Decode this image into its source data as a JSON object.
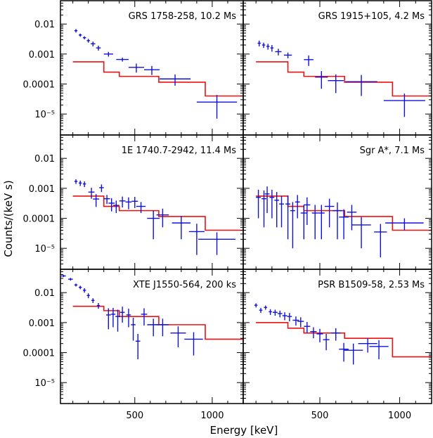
{
  "figure": {
    "xlabel": "Energy [keV]",
    "ylabel": "Counts/(keV s)",
    "x_ticks": [
      "500",
      "1000"
    ],
    "y_ticks": [
      "0.01",
      "0.001",
      "0.0001",
      "10⁻⁵"
    ]
  },
  "colors": {
    "data": "#1010dd",
    "model": "#ee1111",
    "frame": "#000000"
  },
  "chart_data": [
    {
      "type": "scatter",
      "title": "GRS 1758-258, 10.2 Ms",
      "xlim": [
        20,
        1200
      ],
      "ylim": [
        2e-06,
        0.06
      ],
      "yscale": "log",
      "data": [
        [
          120,
          0.006,
          10,
          0.0008
        ],
        [
          148,
          0.0043,
          10,
          0.0005
        ],
        [
          175,
          0.0035,
          10,
          0.0004
        ],
        [
          200,
          0.0028,
          10,
          0.0004
        ],
        [
          230,
          0.0022,
          15,
          0.0004
        ],
        [
          265,
          0.0016,
          15,
          0.0003
        ],
        [
          330,
          0.001,
          30,
          0.00018
        ],
        [
          420,
          0.00066,
          40,
          0.0001
        ],
        [
          510,
          0.00036,
          50,
          0.00012
        ],
        [
          610,
          0.0003,
          50,
          0.0001
        ],
        [
          760,
          0.000148,
          100,
          6e-05
        ],
        [
          1030,
          2.5e-05,
          130,
          1.8e-05
        ]
      ],
      "model": [
        [
          100,
          0.00055
        ],
        [
          300,
          0.00025
        ],
        [
          400,
          0.00018
        ],
        [
          655,
          0.000115
        ],
        [
          955,
          4e-05
        ],
        [
          1200,
          4e-05
        ]
      ]
    },
    {
      "type": "scatter",
      "title": "GRS 1915+105, 4.2 Ms",
      "xlim": [
        20,
        1200
      ],
      "ylim": [
        2e-06,
        0.06
      ],
      "yscale": "log",
      "data": [
        [
          120,
          0.0023,
          10,
          0.0005
        ],
        [
          148,
          0.002,
          10,
          0.0004
        ],
        [
          175,
          0.0018,
          10,
          0.0004
        ],
        [
          200,
          0.0016,
          10,
          0.0004
        ],
        [
          240,
          0.0012,
          20,
          0.0003
        ],
        [
          300,
          0.00092,
          25,
          0.0002
        ],
        [
          430,
          0.00065,
          30,
          0.00025
        ],
        [
          510,
          0.00017,
          40,
          0.0001
        ],
        [
          600,
          0.00013,
          50,
          8e-05
        ],
        [
          760,
          0.00012,
          100,
          8e-05
        ],
        [
          1030,
          2.8e-05,
          130,
          2e-05
        ]
      ],
      "model": [
        [
          100,
          0.00055
        ],
        [
          300,
          0.00025
        ],
        [
          400,
          0.00018
        ],
        [
          655,
          0.000115
        ],
        [
          955,
          4e-05
        ],
        [
          1200,
          4e-05
        ]
      ]
    },
    {
      "type": "scatter",
      "title": "1E 1740.7-2942, 11.4 Ms",
      "xlim": [
        20,
        1200
      ],
      "ylim": [
        2e-06,
        0.06
      ],
      "yscale": "log",
      "data": [
        [
          120,
          0.0017,
          10,
          0.0003
        ],
        [
          148,
          0.0015,
          10,
          0.0003
        ],
        [
          175,
          0.0014,
          10,
          0.0003
        ],
        [
          220,
          0.00075,
          20,
          0.0003
        ],
        [
          250,
          0.00044,
          20,
          0.0002
        ],
        [
          285,
          0.00105,
          15,
          0.0003
        ],
        [
          320,
          0.00045,
          20,
          0.00015
        ],
        [
          350,
          0.00032,
          20,
          0.00015
        ],
        [
          380,
          0.00027,
          20,
          0.00012
        ],
        [
          420,
          0.00038,
          20,
          0.00015
        ],
        [
          460,
          0.00035,
          20,
          0.00015
        ],
        [
          500,
          0.00037,
          20,
          0.00015
        ],
        [
          540,
          0.00025,
          30,
          0.0001
        ],
        [
          620,
          0.0001,
          40,
          8e-05
        ],
        [
          680,
          0.00013,
          40,
          8e-05
        ],
        [
          800,
          7e-05,
          60,
          5e-05
        ],
        [
          900,
          3.6e-05,
          50,
          3e-05
        ],
        [
          1030,
          2e-05,
          120,
          1.4e-05
        ]
      ],
      "model": [
        [
          100,
          0.00055
        ],
        [
          300,
          0.00025
        ],
        [
          400,
          0.00018
        ],
        [
          655,
          0.000115
        ],
        [
          955,
          4e-05
        ],
        [
          1200,
          4e-05
        ]
      ]
    },
    {
      "type": "scatter",
      "title": "Sgr A*, 7.1 Ms",
      "xlim": [
        20,
        1200
      ],
      "ylim": [
        2e-06,
        0.06
      ],
      "yscale": "log",
      "data": [
        [
          115,
          0.0005,
          15,
          0.0004
        ],
        [
          150,
          0.00045,
          15,
          0.0004
        ],
        [
          170,
          0.00065,
          15,
          0.0005
        ],
        [
          200,
          0.0005,
          15,
          0.0004
        ],
        [
          230,
          0.0004,
          15,
          0.00035
        ],
        [
          260,
          0.0003,
          15,
          0.00025
        ],
        [
          300,
          0.0003,
          15,
          0.00028
        ],
        [
          330,
          0.00018,
          15,
          0.00017
        ],
        [
          360,
          0.00035,
          15,
          0.00025
        ],
        [
          400,
          0.00015,
          20,
          0.00013
        ],
        [
          420,
          0.00028,
          20,
          0.00022
        ],
        [
          470,
          0.00015,
          20,
          0.00013
        ],
        [
          510,
          0.00015,
          20,
          0.00013
        ],
        [
          560,
          0.00025,
          30,
          0.0002
        ],
        [
          610,
          0.00018,
          30,
          0.00016
        ],
        [
          650,
          0.00011,
          30,
          9e-05
        ],
        [
          700,
          0.00016,
          30,
          0.00012
        ],
        [
          760,
          6e-05,
          60,
          5e-05
        ],
        [
          880,
          3.5e-05,
          40,
          3e-05
        ],
        [
          1030,
          7e-05,
          120,
          3e-05
        ]
      ],
      "model": [
        [
          100,
          0.00055
        ],
        [
          300,
          0.00025
        ],
        [
          400,
          0.00018
        ],
        [
          655,
          0.000115
        ],
        [
          955,
          4e-05
        ],
        [
          1200,
          4e-05
        ]
      ]
    },
    {
      "type": "scatter",
      "title": "XTE J1550-564, 200 ks",
      "xlim": [
        20,
        1200
      ],
      "ylim": [
        2e-06,
        0.06
      ],
      "yscale": "log",
      "data": [
        [
          40,
          0.036,
          15,
          0.003
        ],
        [
          85,
          0.028,
          15,
          0.003
        ],
        [
          120,
          0.018,
          10,
          0.002
        ],
        [
          148,
          0.015,
          10,
          0.002
        ],
        [
          175,
          0.012,
          10,
          0.002
        ],
        [
          200,
          0.008,
          10,
          0.0015
        ],
        [
          230,
          0.0055,
          10,
          0.001
        ],
        [
          265,
          0.0037,
          10,
          0.0008
        ],
        [
          330,
          0.0018,
          15,
          0.0012
        ],
        [
          360,
          0.0019,
          15,
          0.0012
        ],
        [
          390,
          0.0016,
          15,
          0.0011
        ],
        [
          420,
          0.0022,
          15,
          0.0012
        ],
        [
          460,
          0.0018,
          15,
          0.0011
        ],
        [
          490,
          0.00085,
          15,
          0.0006
        ],
        [
          520,
          0.00024,
          15,
          0.00018
        ],
        [
          560,
          0.0019,
          20,
          0.0011
        ],
        [
          620,
          0.00085,
          40,
          0.0005
        ],
        [
          680,
          0.00085,
          40,
          0.0005
        ],
        [
          780,
          0.00045,
          50,
          0.0003
        ],
        [
          880,
          0.00028,
          60,
          0.0002
        ]
      ],
      "model": [
        [
          100,
          0.0035
        ],
        [
          300,
          0.0025
        ],
        [
          400,
          0.0016
        ],
        [
          655,
          0.00085
        ],
        [
          955,
          0.00028
        ],
        [
          1200,
          0.00028
        ]
      ]
    },
    {
      "type": "scatter",
      "title": "PSR B1509-58, 2.53 Ms",
      "xlim": [
        20,
        1200
      ],
      "ylim": [
        2e-06,
        0.06
      ],
      "yscale": "log",
      "data": [
        [
          100,
          0.0038,
          10,
          0.0006
        ],
        [
          130,
          0.0026,
          10,
          0.0005
        ],
        [
          160,
          0.0032,
          10,
          0.0005
        ],
        [
          190,
          0.0023,
          10,
          0.0005
        ],
        [
          220,
          0.0022,
          15,
          0.0005
        ],
        [
          250,
          0.002,
          15,
          0.0005
        ],
        [
          280,
          0.0017,
          15,
          0.0005
        ],
        [
          310,
          0.0016,
          15,
          0.0005
        ],
        [
          350,
          0.0012,
          20,
          0.0004
        ],
        [
          380,
          0.0011,
          20,
          0.0004
        ],
        [
          420,
          0.00075,
          20,
          0.0003
        ],
        [
          460,
          0.0005,
          20,
          0.0002
        ],
        [
          500,
          0.00042,
          20,
          0.0002
        ],
        [
          540,
          0.00027,
          20,
          0.00015
        ],
        [
          600,
          0.00045,
          30,
          0.0002
        ],
        [
          650,
          0.00013,
          30,
          8e-05
        ],
        [
          710,
          0.00012,
          60,
          8e-05
        ],
        [
          800,
          0.0002,
          60,
          0.0001
        ],
        [
          870,
          0.00016,
          60,
          0.0001
        ]
      ],
      "model": [
        [
          100,
          0.001
        ],
        [
          300,
          0.00065
        ],
        [
          400,
          0.00045
        ],
        [
          655,
          0.0003
        ],
        [
          955,
          7.2e-05
        ],
        [
          1200,
          7.2e-05
        ]
      ]
    }
  ]
}
